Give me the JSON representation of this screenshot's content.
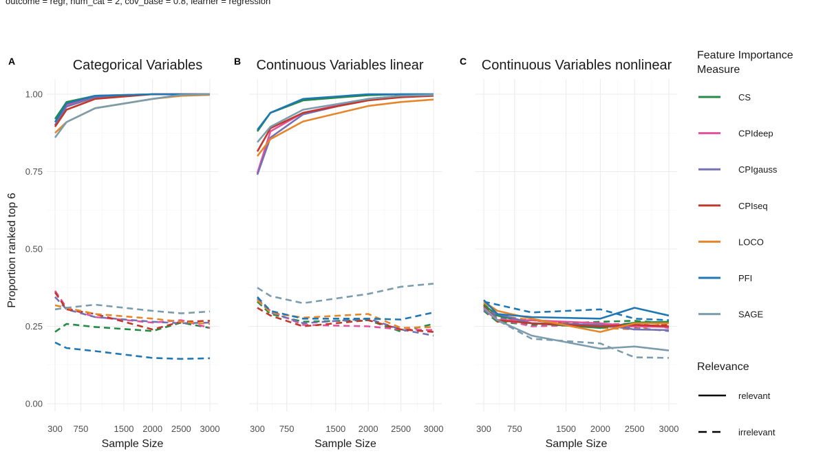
{
  "subtitle": "outcome = regr, num_cat = 2, cov_base = 0.8, learner = regression",
  "chart_data": {
    "type": "line",
    "ylabel": "Proportion ranked top 6",
    "xlabel": "Sample Size",
    "xlim": [
      300,
      3000
    ],
    "ylim": [
      0,
      1
    ],
    "x": [
      300,
      500,
      1000,
      2000,
      2500,
      3000
    ],
    "xticks": [
      300,
      750,
      1500,
      2000,
      2500,
      3000
    ],
    "xtick_labels": [
      "300",
      "750",
      "1500",
      "2000",
      "2500",
      "3000"
    ],
    "yticks": [
      0,
      0.25,
      0.5,
      0.75,
      1.0
    ],
    "ytick_labels": [
      "0.00",
      "0.25",
      "0.50",
      "0.75",
      "1.00"
    ],
    "legend": {
      "title": "Feature Importance Measure",
      "entries": [
        {
          "name": "CS",
          "color": "#238b45"
        },
        {
          "name": "CPIdeep",
          "color": "#e7509b"
        },
        {
          "name": "CPIgauss",
          "color": "#7570b3"
        },
        {
          "name": "CPIseq",
          "color": "#c0392b"
        },
        {
          "name": "LOCO",
          "color": "#e6862a"
        },
        {
          "name": "PFI",
          "color": "#1f78b4"
        },
        {
          "name": "SAGE",
          "color": "#7a9cac"
        }
      ],
      "relevance_title": "Relevance",
      "relevance_entries": [
        {
          "name": "relevant",
          "dash": "solid"
        },
        {
          "name": "irrelevant",
          "dash": "dashed"
        }
      ]
    },
    "panels": [
      {
        "tag": "A",
        "title": "Categorical Variables",
        "series": [
          {
            "name": "CS",
            "relevance": "relevant",
            "values": [
              0.92,
              0.975,
              0.995,
              1.0,
              1.0,
              1.0
            ]
          },
          {
            "name": "CPIdeep",
            "relevance": "relevant",
            "values": [
              0.9,
              0.965,
              0.99,
              1.0,
              1.0,
              1.0
            ]
          },
          {
            "name": "CPIgauss",
            "relevance": "relevant",
            "values": [
              0.9,
              0.96,
              0.99,
              1.0,
              1.0,
              1.0
            ]
          },
          {
            "name": "CPIseq",
            "relevance": "relevant",
            "values": [
              0.895,
              0.95,
              0.985,
              1.0,
              1.0,
              1.0
            ]
          },
          {
            "name": "LOCO",
            "relevance": "relevant",
            "values": [
              0.875,
              0.91,
              0.955,
              0.985,
              0.995,
              0.998
            ]
          },
          {
            "name": "PFI",
            "relevance": "relevant",
            "values": [
              0.91,
              0.97,
              0.995,
              1.0,
              1.0,
              1.0
            ]
          },
          {
            "name": "SAGE",
            "relevance": "relevant",
            "values": [
              0.86,
              0.91,
              0.955,
              0.985,
              0.998,
              1.0
            ]
          },
          {
            "name": "CS",
            "relevance": "irrelevant",
            "values": [
              0.232,
              0.258,
              0.248,
              0.235,
              0.262,
              0.245
            ]
          },
          {
            "name": "CPIdeep",
            "relevance": "irrelevant",
            "values": [
              0.365,
              0.31,
              0.28,
              0.262,
              0.27,
              0.245
            ]
          },
          {
            "name": "CPIgauss",
            "relevance": "irrelevant",
            "values": [
              0.345,
              0.305,
              0.28,
              0.265,
              0.26,
              0.262
            ]
          },
          {
            "name": "CPIseq",
            "relevance": "irrelevant",
            "values": [
              0.36,
              0.305,
              0.29,
              0.24,
              0.265,
              0.268
            ]
          },
          {
            "name": "LOCO",
            "relevance": "irrelevant",
            "values": [
              0.318,
              0.31,
              0.29,
              0.275,
              0.265,
              0.258
            ]
          },
          {
            "name": "PFI",
            "relevance": "irrelevant",
            "values": [
              0.198,
              0.18,
              0.17,
              0.148,
              0.145,
              0.147
            ]
          },
          {
            "name": "SAGE",
            "relevance": "irrelevant",
            "values": [
              0.305,
              0.31,
              0.32,
              0.3,
              0.292,
              0.298
            ]
          }
        ]
      },
      {
        "tag": "B",
        "title": "Continuous Variables linear",
        "series": [
          {
            "name": "CS",
            "relevance": "relevant",
            "values": [
              0.88,
              0.94,
              0.98,
              0.997,
              1.0,
              1.0
            ]
          },
          {
            "name": "CPIdeep",
            "relevance": "relevant",
            "values": [
              0.745,
              0.88,
              0.94,
              0.985,
              0.995,
              0.998
            ]
          },
          {
            "name": "CPIgauss",
            "relevance": "relevant",
            "values": [
              0.74,
              0.86,
              0.935,
              0.985,
              0.995,
              0.998
            ]
          },
          {
            "name": "CPIseq",
            "relevance": "relevant",
            "values": [
              0.815,
              0.89,
              0.94,
              0.98,
              0.99,
              0.995
            ]
          },
          {
            "name": "LOCO",
            "relevance": "relevant",
            "values": [
              0.8,
              0.855,
              0.912,
              0.962,
              0.975,
              0.983
            ]
          },
          {
            "name": "PFI",
            "relevance": "relevant",
            "values": [
              0.885,
              0.94,
              0.985,
              1.0,
              1.0,
              1.0
            ]
          },
          {
            "name": "SAGE",
            "relevance": "relevant",
            "values": [
              0.845,
              0.895,
              0.95,
              0.985,
              0.995,
              0.998
            ]
          },
          {
            "name": "CS",
            "relevance": "irrelevant",
            "values": [
              0.33,
              0.29,
              0.265,
              0.27,
              0.233,
              0.258
            ]
          },
          {
            "name": "CPIdeep",
            "relevance": "irrelevant",
            "values": [
              0.335,
              0.3,
              0.255,
              0.25,
              0.24,
              0.238
            ]
          },
          {
            "name": "CPIgauss",
            "relevance": "irrelevant",
            "values": [
              0.34,
              0.295,
              0.26,
              0.275,
              0.24,
              0.22
            ]
          },
          {
            "name": "CPIseq",
            "relevance": "irrelevant",
            "values": [
              0.31,
              0.285,
              0.25,
              0.27,
              0.24,
              0.232
            ]
          },
          {
            "name": "LOCO",
            "relevance": "irrelevant",
            "values": [
              0.335,
              0.295,
              0.278,
              0.29,
              0.245,
              0.248
            ]
          },
          {
            "name": "PFI",
            "relevance": "irrelevant",
            "values": [
              0.345,
              0.3,
              0.275,
              0.275,
              0.272,
              0.295
            ]
          },
          {
            "name": "SAGE",
            "relevance": "irrelevant",
            "values": [
              0.375,
              0.348,
              0.325,
              0.355,
              0.378,
              0.388
            ]
          }
        ]
      },
      {
        "tag": "C",
        "title": "Continuous Variables nonlinear",
        "series": [
          {
            "name": "CS",
            "relevance": "relevant",
            "values": [
              0.32,
              0.285,
              0.26,
              0.245,
              0.262,
              0.265
            ]
          },
          {
            "name": "CPIdeep",
            "relevance": "relevant",
            "values": [
              0.305,
              0.27,
              0.27,
              0.26,
              0.25,
              0.248
            ]
          },
          {
            "name": "CPIgauss",
            "relevance": "relevant",
            "values": [
              0.3,
              0.29,
              0.26,
              0.255,
              0.24,
              0.238
            ]
          },
          {
            "name": "CPIseq",
            "relevance": "relevant",
            "values": [
              0.315,
              0.27,
              0.26,
              0.25,
              0.255,
              0.25
            ]
          },
          {
            "name": "LOCO",
            "relevance": "relevant",
            "values": [
              0.33,
              0.3,
              0.275,
              0.232,
              0.26,
              0.26
            ]
          },
          {
            "name": "PFI",
            "relevance": "relevant",
            "values": [
              0.335,
              0.29,
              0.28,
              0.275,
              0.31,
              0.285
            ]
          },
          {
            "name": "SAGE",
            "relevance": "relevant",
            "values": [
              0.31,
              0.27,
              0.22,
              0.178,
              0.185,
              0.172
            ]
          },
          {
            "name": "CS",
            "relevance": "irrelevant",
            "values": [
              0.3,
              0.265,
              0.255,
              0.265,
              0.268,
              0.26
            ]
          },
          {
            "name": "CPIdeep",
            "relevance": "irrelevant",
            "values": [
              0.31,
              0.275,
              0.25,
              0.255,
              0.26,
              0.245
            ]
          },
          {
            "name": "CPIgauss",
            "relevance": "irrelevant",
            "values": [
              0.315,
              0.28,
              0.26,
              0.255,
              0.245,
              0.235
            ]
          },
          {
            "name": "CPIseq",
            "relevance": "irrelevant",
            "values": [
              0.32,
              0.265,
              0.27,
              0.248,
              0.25,
              0.255
            ]
          },
          {
            "name": "LOCO",
            "relevance": "irrelevant",
            "values": [
              0.325,
              0.285,
              0.27,
              0.245,
              0.24,
              0.262
            ]
          },
          {
            "name": "PFI",
            "relevance": "irrelevant",
            "values": [
              0.33,
              0.32,
              0.295,
              0.305,
              0.275,
              0.27
            ]
          },
          {
            "name": "SAGE",
            "relevance": "irrelevant",
            "values": [
              0.31,
              0.27,
              0.21,
              0.195,
              0.15,
              0.148
            ]
          }
        ]
      }
    ]
  }
}
